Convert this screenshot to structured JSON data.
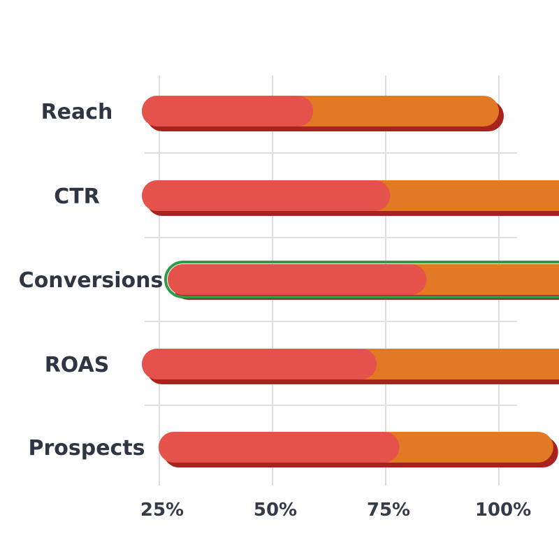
{
  "chart_data": {
    "type": "bar",
    "orientation": "horizontal",
    "stacked": true,
    "categories": [
      "Reach",
      "CTR",
      "Conversions",
      "ROAS",
      "Prospects"
    ],
    "series": [
      {
        "values": [
          59,
          76,
          84,
          73,
          78
        ]
      },
      {
        "values": [
          100,
          137,
          140,
          137,
          112
        ]
      }
    ],
    "x_axis": {
      "ticks": [
        25,
        50,
        75,
        100
      ],
      "tick_labels": [
        "25%",
        "50%",
        "75%",
        "100%"
      ]
    },
    "grid": true,
    "highlighted_category": "Conversions"
  },
  "colors": {
    "segment_1": "#e5524c",
    "segment_2": "#e27a25",
    "shadow": "#a8231d",
    "highlight_outline": "#2e9b48",
    "grid": "#dcdee3"
  }
}
